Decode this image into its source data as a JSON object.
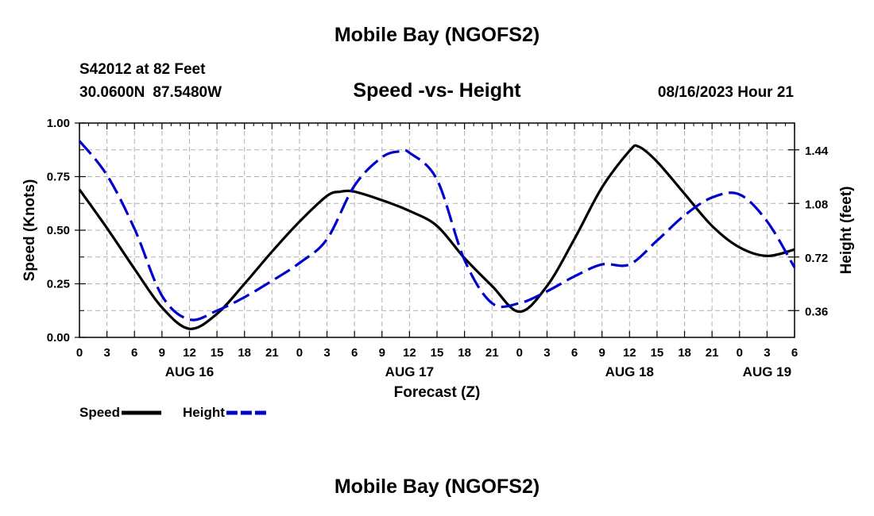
{
  "header": {
    "title": "Mobile Bay (NGOFS2)",
    "station": "S42012 at 82 Feet",
    "lat": "30.0600N",
    "lon": "87.5480W",
    "subtitle": "Speed -vs- Height",
    "valid_time": "08/16/2023 Hour 21"
  },
  "footer": {
    "title": "Mobile Bay (NGOFS2)"
  },
  "chart_data": {
    "type": "line",
    "title": "Speed -vs- Height",
    "xlabel": "Forecast (Z)",
    "ylabel": "Speed (Knots)",
    "y2label": "Height (feet)",
    "xlim": [
      0,
      78
    ],
    "ylim": [
      0,
      1.0
    ],
    "y2lim": [
      0.18,
      1.62
    ],
    "grid": true,
    "x_ticks": [
      0,
      3,
      6,
      9,
      12,
      15,
      18,
      21,
      24,
      27,
      30,
      33,
      36,
      39,
      42,
      45,
      48,
      51,
      54,
      57,
      60,
      63,
      66,
      69,
      72,
      75,
      78
    ],
    "x_tick_labels": [
      "0",
      "3",
      "6",
      "9",
      "12",
      "15",
      "18",
      "21",
      "0",
      "3",
      "6",
      "9",
      "12",
      "15",
      "18",
      "21",
      "0",
      "3",
      "6",
      "9",
      "12",
      "15",
      "18",
      "21",
      "0",
      "3",
      "6"
    ],
    "day_labels": [
      {
        "x": 12,
        "label": "AUG 16"
      },
      {
        "x": 36,
        "label": "AUG 17"
      },
      {
        "x": 60,
        "label": "AUG 18"
      },
      {
        "x": 75,
        "label": "AUG 19"
      }
    ],
    "y_ticks": [
      0,
      0.25,
      0.5,
      0.75,
      1.0
    ],
    "y_tick_labels": [
      "0.00",
      "0.25",
      "0.50",
      "0.75",
      "1.00"
    ],
    "y2_ticks": [
      0.36,
      0.72,
      1.08,
      1.44
    ],
    "y2_tick_labels": [
      "0.36",
      "0.72",
      "1.08",
      "1.44"
    ],
    "series": [
      {
        "name": "Speed",
        "axis": "left",
        "color": "#000000",
        "style": "solid",
        "x": [
          0,
          3,
          6,
          9,
          12,
          15,
          18,
          21,
          24,
          27,
          28.5,
          30,
          33,
          36,
          39,
          42,
          45,
          48,
          51,
          54,
          57,
          60,
          61,
          63,
          66,
          69,
          72,
          75,
          78
        ],
        "values": [
          0.69,
          0.51,
          0.32,
          0.14,
          0.04,
          0.11,
          0.25,
          0.4,
          0.54,
          0.66,
          0.68,
          0.68,
          0.64,
          0.59,
          0.52,
          0.37,
          0.24,
          0.12,
          0.24,
          0.46,
          0.7,
          0.87,
          0.89,
          0.82,
          0.67,
          0.52,
          0.42,
          0.38,
          0.41
        ]
      },
      {
        "name": "Height",
        "axis": "right",
        "color": "#0000cc",
        "style": "dashed",
        "x": [
          0,
          3,
          6,
          9,
          12,
          15,
          18,
          21,
          24,
          27,
          30,
          33,
          35,
          36,
          39,
          42,
          45,
          48,
          51,
          54,
          57,
          60,
          63,
          66,
          69,
          72,
          75,
          78
        ],
        "values": [
          1.5,
          1.27,
          0.91,
          0.46,
          0.3,
          0.36,
          0.45,
          0.56,
          0.68,
          0.84,
          1.2,
          1.39,
          1.43,
          1.42,
          1.24,
          0.7,
          0.41,
          0.41,
          0.49,
          0.59,
          0.67,
          0.67,
          0.83,
          1.0,
          1.12,
          1.14,
          0.96,
          0.65
        ]
      }
    ],
    "legend": [
      {
        "label": "Speed",
        "color": "#000000",
        "style": "solid"
      },
      {
        "label": "Height",
        "color": "#0000cc",
        "style": "dashed"
      }
    ],
    "legend_position": "bottom-left"
  }
}
